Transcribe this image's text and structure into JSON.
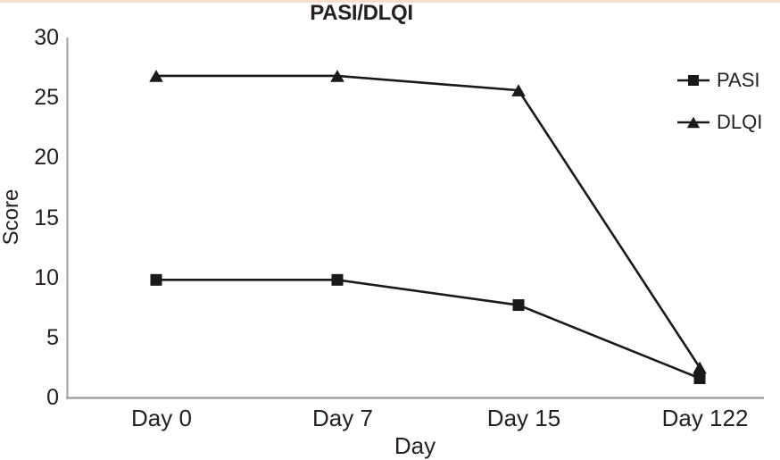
{
  "chart_data": {
    "type": "line",
    "title": "PASI/DLQI",
    "xlabel": "Day",
    "ylabel": "Score",
    "categories": [
      "Day 0",
      "Day 7",
      "Day 15",
      "Day 122"
    ],
    "series": [
      {
        "name": "PASI",
        "marker": "square",
        "color": "#1a1a1a",
        "values": [
          9.8,
          9.8,
          7.7,
          1.6
        ]
      },
      {
        "name": "DLQI",
        "marker": "triangle",
        "color": "#1a1a1a",
        "values": [
          26.8,
          26.8,
          25.6,
          2.5
        ]
      }
    ],
    "ylim": [
      0,
      30
    ],
    "yticks": [
      0,
      5,
      10,
      15,
      20,
      25,
      30
    ],
    "grid": false,
    "legend_position": "right",
    "axis_color": "#a3a1a1",
    "text_color": "#262020",
    "accent_bar_color": "#f7dfcb"
  }
}
